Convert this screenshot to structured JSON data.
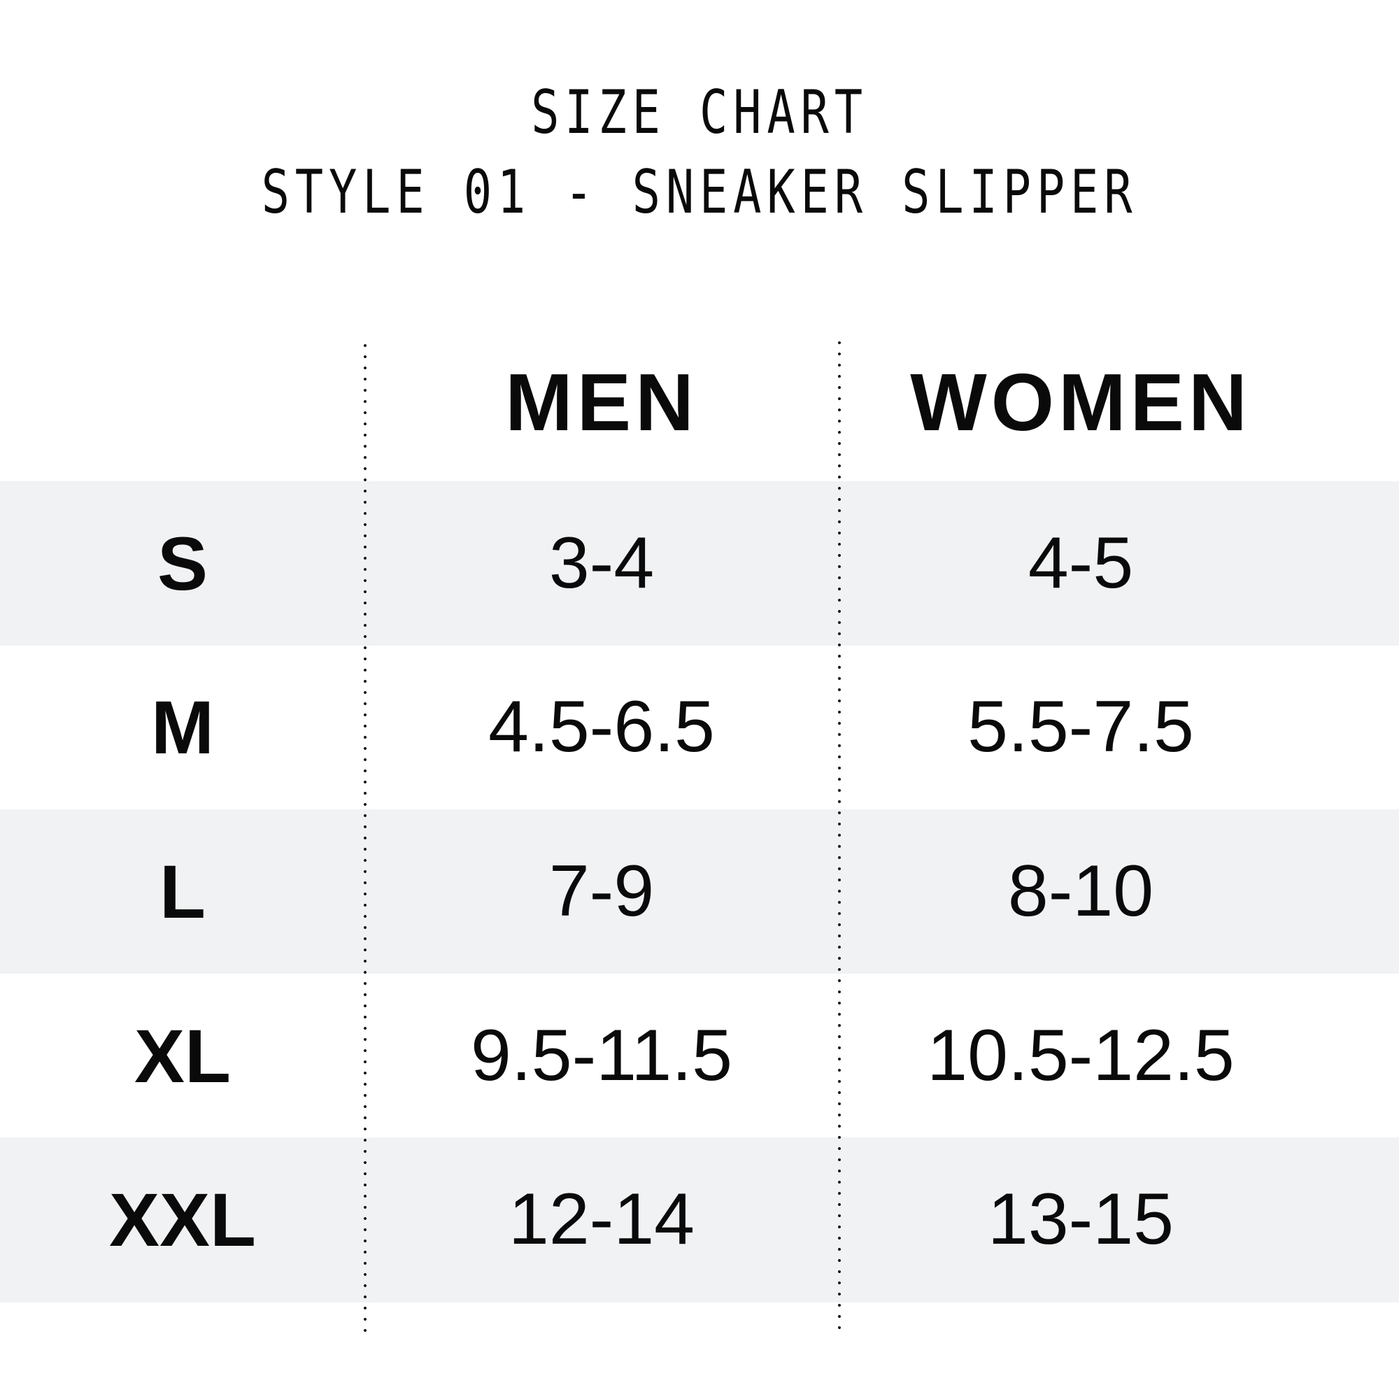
{
  "title": {
    "line1": "SIZE CHART",
    "line2": "STYLE 01 - SNEAKER SLIPPER"
  },
  "colors": {
    "band": "#f1f2f4",
    "text": "#0a0a0a",
    "divider": "#111111"
  },
  "table": {
    "headers": [
      "",
      "MEN",
      "WOMEN"
    ],
    "rows": [
      {
        "size": "S",
        "men": "3-4",
        "women": "4-5"
      },
      {
        "size": "M",
        "men": "4.5-6.5",
        "women": "5.5-7.5"
      },
      {
        "size": "L",
        "men": "7-9",
        "women": "8-10"
      },
      {
        "size": "XL",
        "men": "9.5-11.5",
        "women": "10.5-12.5"
      },
      {
        "size": "XXL",
        "men": "12-14",
        "women": "13-15"
      }
    ]
  }
}
